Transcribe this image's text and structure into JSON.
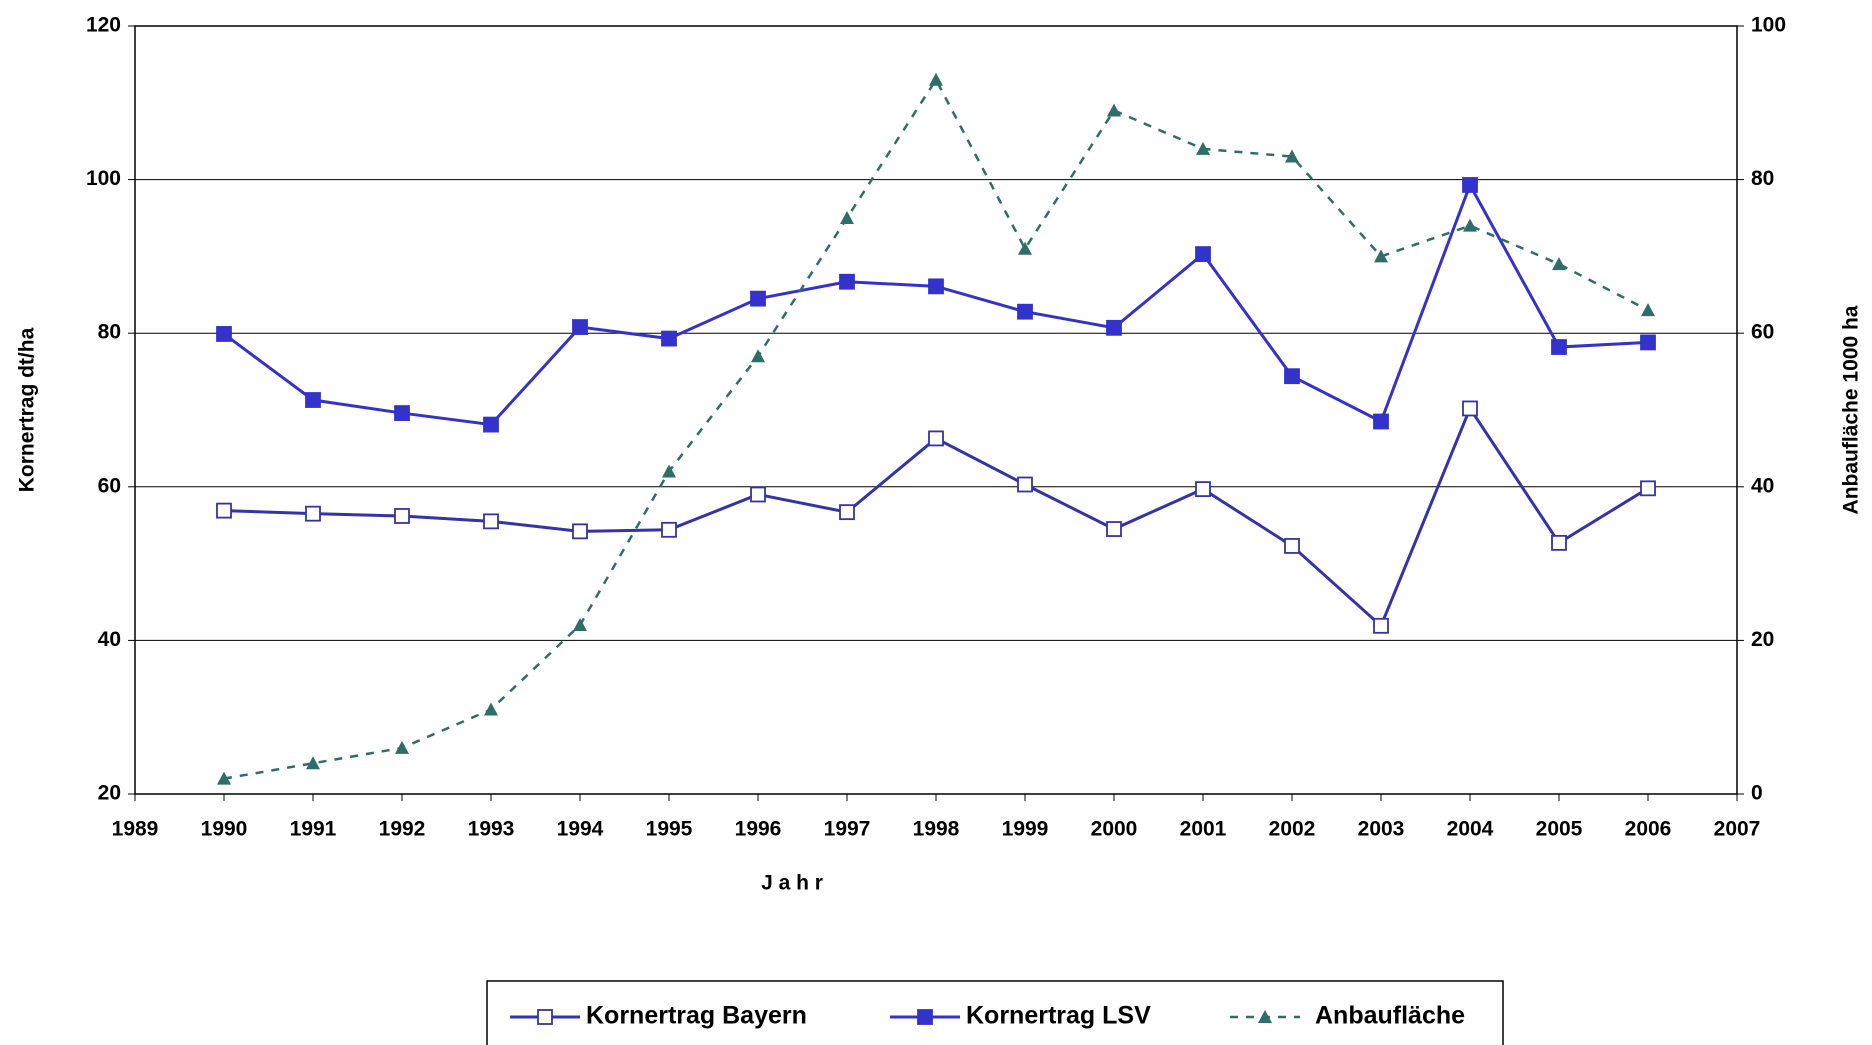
{
  "chart_data": {
    "type": "line",
    "xlabel": "J a h r",
    "ylabel": "Kornertrag  dt/ha",
    "y2label": "Anbaufläche  1000 ha",
    "x": [
      1990,
      1991,
      1992,
      1993,
      1994,
      1995,
      1996,
      1997,
      1998,
      1999,
      2000,
      2001,
      2002,
      2003,
      2004,
      2005,
      2006
    ],
    "xlim": [
      1989,
      2007
    ],
    "xticks": [
      1989,
      1990,
      1991,
      1992,
      1993,
      1994,
      1995,
      1996,
      1997,
      1998,
      1999,
      2000,
      2001,
      2002,
      2003,
      2004,
      2005,
      2006,
      2007
    ],
    "ylim": [
      20,
      120
    ],
    "yticks": [
      20,
      40,
      60,
      80,
      100,
      120
    ],
    "y2lim": [
      0,
      100
    ],
    "y2ticks": [
      0,
      20,
      40,
      60,
      80,
      100
    ],
    "grid": true,
    "series": [
      {
        "name": "Kornertrag  Bayern",
        "color": "#3333aa",
        "marker": "open-square",
        "values": [
          56.9,
          56.5,
          56.2,
          55.5,
          54.2,
          54.4,
          59.0,
          56.7,
          66.3,
          60.3,
          54.5,
          59.7,
          52.3,
          41.9,
          70.2,
          52.7,
          59.8
        ]
      },
      {
        "name": "Kornertrag  LSV",
        "color": "#3333cc",
        "marker": "square",
        "values": [
          79.9,
          71.3,
          69.6,
          68.1,
          80.8,
          79.3,
          84.5,
          86.7,
          86.1,
          82.8,
          80.7,
          90.3,
          74.4,
          68.5,
          99.3,
          78.2,
          78.8
        ]
      },
      {
        "name": "Anbaufläche",
        "color": "#2e6e6a",
        "marker": "triangle",
        "dashed": true,
        "axis": "y2",
        "values": [
          2,
          4,
          6,
          11,
          22,
          42,
          57,
          75,
          93,
          71,
          89,
          84,
          83,
          70,
          74,
          69,
          63
        ]
      }
    ]
  }
}
